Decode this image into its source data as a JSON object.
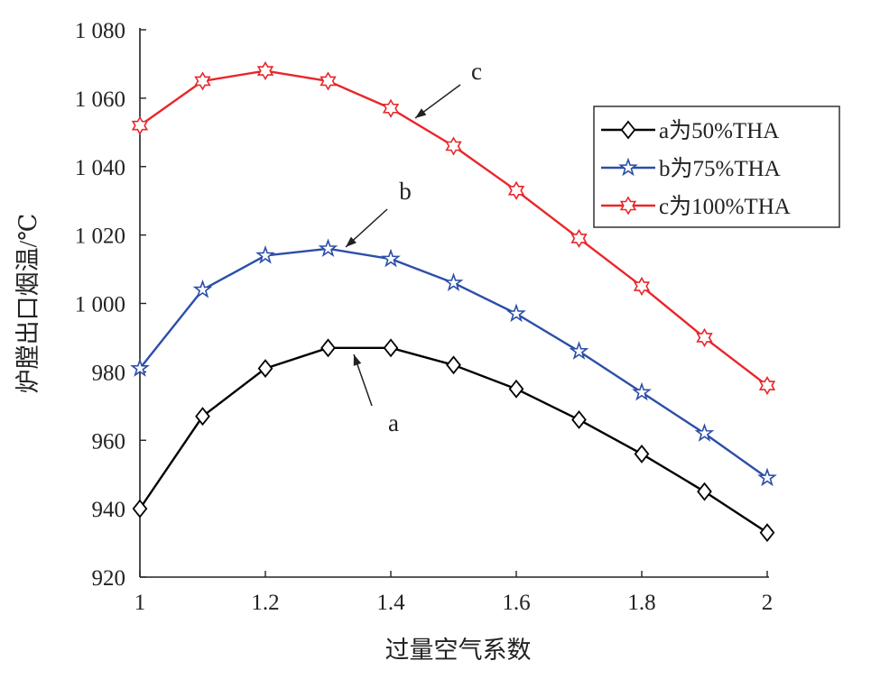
{
  "chart_data": {
    "type": "line",
    "title": "",
    "xlabel": "过量空气系数",
    "ylabel": "炉膛出口烟温/℃",
    "xlim": [
      1,
      2
    ],
    "ylim": [
      920,
      1080
    ],
    "x_ticks": [
      1,
      1.2,
      1.4,
      1.6,
      1.8,
      2
    ],
    "x_tick_labels": [
      "1",
      "1.2",
      "1.4",
      "1.6",
      "1.8",
      "2"
    ],
    "y_ticks": [
      920,
      940,
      960,
      980,
      1000,
      1020,
      1040,
      1060,
      1080
    ],
    "y_tick_labels": [
      "920",
      "940",
      "960",
      "980",
      "1 000",
      "1 020",
      "1 040",
      "1 060",
      "1 080"
    ],
    "grid": false,
    "legend_position": "top-right",
    "x": [
      1.0,
      1.1,
      1.2,
      1.3,
      1.4,
      1.5,
      1.6,
      1.7,
      1.8,
      1.9,
      2.0
    ],
    "series": [
      {
        "name": "a为50%THA",
        "label": "a",
        "color": "#000000",
        "marker": "diamond",
        "values": [
          940,
          967,
          981,
          987,
          987,
          982,
          975,
          966,
          956,
          945,
          933
        ]
      },
      {
        "name": "b为75%THA",
        "label": "b",
        "color": "#2b4ea8",
        "marker": "star",
        "values": [
          981,
          1004,
          1014,
          1016,
          1013,
          1006,
          997,
          986,
          974,
          962,
          949
        ]
      },
      {
        "name": "c为100%THA",
        "label": "c",
        "color": "#e8262a",
        "marker": "hexagram",
        "values": [
          1052,
          1065,
          1068,
          1065,
          1057,
          1046,
          1033,
          1019,
          1005,
          990,
          976
        ]
      }
    ],
    "annotations": [
      {
        "text": "a",
        "points_to_series": "a",
        "at_x": 1.34
      },
      {
        "text": "b",
        "points_to_series": "b",
        "at_x": 1.33
      },
      {
        "text": "c",
        "points_to_series": "c",
        "at_x": 1.44
      }
    ]
  }
}
